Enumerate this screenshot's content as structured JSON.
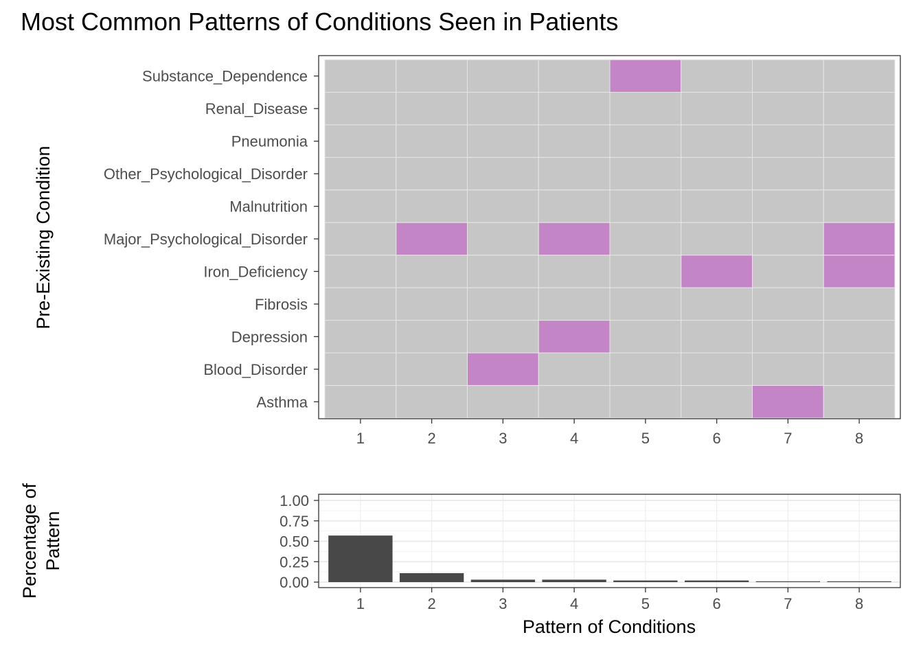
{
  "colors": {
    "active": "#c385c6",
    "inactive": "#c6c6c6",
    "bar": "#484848",
    "grid_bottom": "#ebebeb",
    "grid_bottom_minor": "#f3f3f3",
    "cell_border": "#e6e6e6",
    "axis_text": "#4d4d4d",
    "title_text": "#000000"
  },
  "chart_data": [
    {
      "type": "heatmap",
      "title": "Most Common Patterns of Conditions Seen in Patients",
      "xlabel": "",
      "ylabel": "Pre-Existing Condition",
      "x": [
        "1",
        "2",
        "3",
        "4",
        "5",
        "6",
        "7",
        "8"
      ],
      "y": [
        "Substance_Dependence",
        "Renal_Disease",
        "Pneumonia",
        "Other_Psychological_Disorder",
        "Malnutrition",
        "Major_Psychological_Disorder",
        "Iron_Deficiency",
        "Fibrosis",
        "Depression",
        "Blood_Disorder",
        "Asthma"
      ],
      "matrix": [
        [
          0,
          0,
          0,
          0,
          1,
          0,
          0,
          0
        ],
        [
          0,
          0,
          0,
          0,
          0,
          0,
          0,
          0
        ],
        [
          0,
          0,
          0,
          0,
          0,
          0,
          0,
          0
        ],
        [
          0,
          0,
          0,
          0,
          0,
          0,
          0,
          0
        ],
        [
          0,
          0,
          0,
          0,
          0,
          0,
          0,
          0
        ],
        [
          0,
          1,
          0,
          1,
          0,
          0,
          0,
          1
        ],
        [
          0,
          0,
          0,
          0,
          0,
          1,
          0,
          1
        ],
        [
          0,
          0,
          0,
          0,
          0,
          0,
          0,
          0
        ],
        [
          0,
          0,
          0,
          1,
          0,
          0,
          0,
          0
        ],
        [
          0,
          0,
          1,
          0,
          0,
          0,
          0,
          0
        ],
        [
          0,
          0,
          0,
          0,
          0,
          0,
          1,
          0
        ]
      ],
      "grid": false
    },
    {
      "type": "bar",
      "xlabel": "Pattern of Conditions",
      "ylabel": [
        "Percentage of",
        "Pattern"
      ],
      "categories": [
        "1",
        "2",
        "3",
        "4",
        "5",
        "6",
        "7",
        "8"
      ],
      "values": [
        0.57,
        0.11,
        0.03,
        0.03,
        0.02,
        0.02,
        0.01,
        0.01
      ],
      "ylim": [
        0,
        1
      ],
      "yticks": [
        "0.00",
        "0.25",
        "0.50",
        "0.75",
        "1.00"
      ],
      "grid": true
    }
  ]
}
